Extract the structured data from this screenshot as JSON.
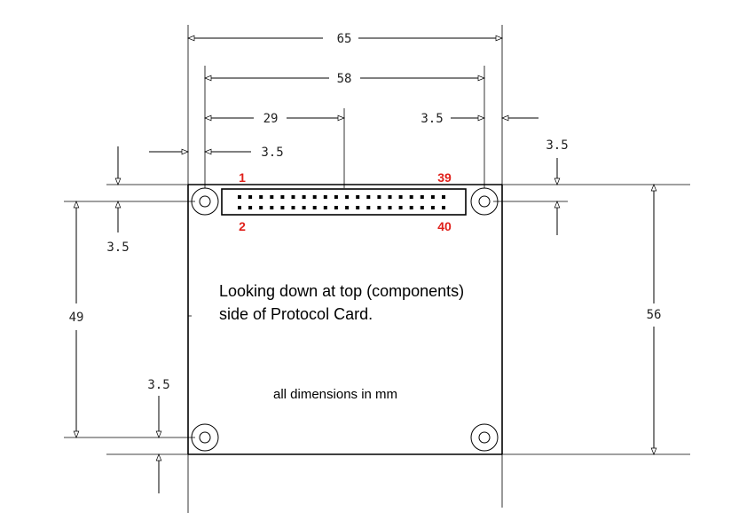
{
  "dimensions": {
    "width_overall": "65",
    "hole_spacing_x": "58",
    "connector_center": "29",
    "right_offset_top": "3.5",
    "left_offset_x": "3.5",
    "top_right_offset_y": "3.5",
    "left_offset_y": "3.5",
    "height_holes": "49",
    "height_overall": "56",
    "bottom_offset_y": "3.5"
  },
  "connector": {
    "pin_top_left": "1",
    "pin_bottom_left": "2",
    "pin_top_right": "39",
    "pin_bottom_right": "40",
    "pin_label_color": "#e0201a",
    "pin_rows": 2,
    "pins_per_row": 20
  },
  "notes": {
    "orientation_line1": "Looking down at top (components)",
    "orientation_line2": "side of Protocol Card.",
    "units": "all dimensions in mm"
  }
}
